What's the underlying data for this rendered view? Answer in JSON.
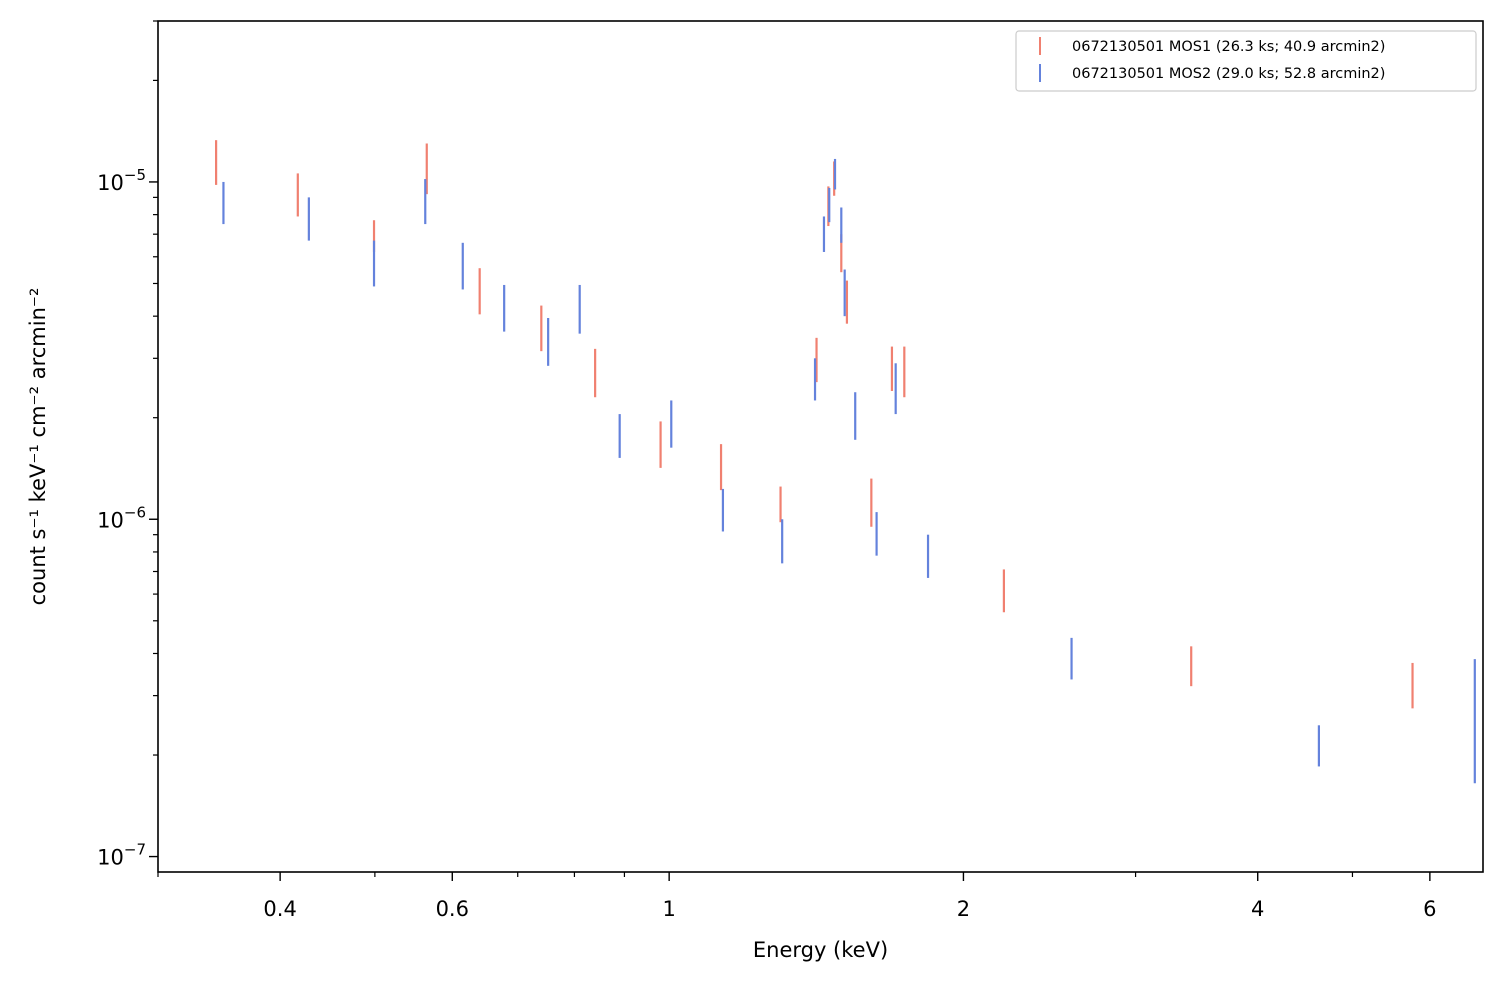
{
  "chart_data": {
    "type": "scatter",
    "xlabel": "Energy (keV)",
    "ylabel": "count s⁻¹ keV⁻¹ cm⁻² arcmin⁻²",
    "xscale": "log",
    "yscale": "log",
    "xlim": [
      0.3,
      6.8
    ],
    "ylim": [
      9e-08,
      3e-05
    ],
    "x_ticks": [
      {
        "value": 0.4,
        "label": "0.4"
      },
      {
        "value": 0.6,
        "label": "0.6"
      },
      {
        "value": 1,
        "label": "1"
      },
      {
        "value": 2,
        "label": "2"
      },
      {
        "value": 4,
        "label": "4"
      },
      {
        "value": 6,
        "label": "6"
      }
    ],
    "x_minor_ticks": [
      0.3,
      0.5,
      0.7,
      0.8,
      0.9,
      3,
      5
    ],
    "y_ticks": [
      {
        "value": 1e-05,
        "base": "10",
        "exp": "−5"
      },
      {
        "value": 1e-06,
        "base": "10",
        "exp": "−6"
      },
      {
        "value": 1e-07,
        "base": "10",
        "exp": "−7"
      }
    ],
    "y_minor_ticks": [
      2e-07,
      3e-07,
      4e-07,
      5e-07,
      6e-07,
      7e-07,
      8e-07,
      9e-07,
      2e-06,
      3e-06,
      4e-06,
      5e-06,
      6e-06,
      7e-06,
      8e-06,
      9e-06,
      2e-05,
      3e-05
    ],
    "grid": false,
    "legend_position": "top-right",
    "series": [
      {
        "name": "0672130501 MOS1 (26.3 ks; 40.9 arcmin2)",
        "color": "#f08070",
        "points": [
          {
            "x": 0.344,
            "ylo": 9.8e-06,
            "yhi": 1.33e-05
          },
          {
            "x": 0.417,
            "ylo": 7.9e-06,
            "yhi": 1.06e-05
          },
          {
            "x": 0.499,
            "ylo": 6.2e-06,
            "yhi": 7.7e-06
          },
          {
            "x": 0.565,
            "ylo": 9.2e-06,
            "yhi": 1.3e-05
          },
          {
            "x": 0.64,
            "ylo": 4.05e-06,
            "yhi": 5.55e-06
          },
          {
            "x": 0.74,
            "ylo": 3.15e-06,
            "yhi": 4.3e-06
          },
          {
            "x": 0.84,
            "ylo": 2.3e-06,
            "yhi": 3.2e-06
          },
          {
            "x": 0.98,
            "ylo": 1.42e-06,
            "yhi": 1.95e-06
          },
          {
            "x": 1.13,
            "ylo": 1.22e-06,
            "yhi": 1.67e-06
          },
          {
            "x": 1.3,
            "ylo": 9.8e-07,
            "yhi": 1.25e-06
          },
          {
            "x": 1.415,
            "ylo": 2.55e-06,
            "yhi": 3.45e-06
          },
          {
            "x": 1.455,
            "ylo": 7.4e-06,
            "yhi": 9.7e-06
          },
          {
            "x": 1.475,
            "ylo": 9.1e-06,
            "yhi": 1.15e-05
          },
          {
            "x": 1.5,
            "ylo": 5.4e-06,
            "yhi": 7e-06
          },
          {
            "x": 1.52,
            "ylo": 3.8e-06,
            "yhi": 5.1e-06
          },
          {
            "x": 1.61,
            "ylo": 9.5e-07,
            "yhi": 1.32e-06
          },
          {
            "x": 1.69,
            "ylo": 2.4e-06,
            "yhi": 3.25e-06
          },
          {
            "x": 1.74,
            "ylo": 2.3e-06,
            "yhi": 3.25e-06
          },
          {
            "x": 2.2,
            "ylo": 5.3e-07,
            "yhi": 7.1e-07
          },
          {
            "x": 3.42,
            "ylo": 3.2e-07,
            "yhi": 4.2e-07
          },
          {
            "x": 5.76,
            "ylo": 2.75e-07,
            "yhi": 3.75e-07
          }
        ]
      },
      {
        "name": "0672130501 MOS2 (29.0 ks; 52.8 arcmin2)",
        "color": "#6482dc",
        "points": [
          {
            "x": 0.35,
            "ylo": 7.5e-06,
            "yhi": 1e-05
          },
          {
            "x": 0.428,
            "ylo": 6.7e-06,
            "yhi": 9e-06
          },
          {
            "x": 0.499,
            "ylo": 4.9e-06,
            "yhi": 6.7e-06
          },
          {
            "x": 0.563,
            "ylo": 7.5e-06,
            "yhi": 1.02e-05
          },
          {
            "x": 0.615,
            "ylo": 4.8e-06,
            "yhi": 6.6e-06
          },
          {
            "x": 0.678,
            "ylo": 3.6e-06,
            "yhi": 4.95e-06
          },
          {
            "x": 0.752,
            "ylo": 2.85e-06,
            "yhi": 3.95e-06
          },
          {
            "x": 0.81,
            "ylo": 3.55e-06,
            "yhi": 4.95e-06
          },
          {
            "x": 0.89,
            "ylo": 1.52e-06,
            "yhi": 2.05e-06
          },
          {
            "x": 1.005,
            "ylo": 1.63e-06,
            "yhi": 2.25e-06
          },
          {
            "x": 1.135,
            "ylo": 9.2e-07,
            "yhi": 1.23e-06
          },
          {
            "x": 1.305,
            "ylo": 7.4e-07,
            "yhi": 1e-06
          },
          {
            "x": 1.41,
            "ylo": 2.25e-06,
            "yhi": 3e-06
          },
          {
            "x": 1.44,
            "ylo": 6.2e-06,
            "yhi": 7.9e-06
          },
          {
            "x": 1.458,
            "ylo": 7.6e-06,
            "yhi": 9.6e-06
          },
          {
            "x": 1.478,
            "ylo": 9.5e-06,
            "yhi": 1.17e-05
          },
          {
            "x": 1.5,
            "ylo": 6.6e-06,
            "yhi": 8.4e-06
          },
          {
            "x": 1.512,
            "ylo": 4e-06,
            "yhi": 5.5e-06
          },
          {
            "x": 1.55,
            "ylo": 1.72e-06,
            "yhi": 2.38e-06
          },
          {
            "x": 1.63,
            "ylo": 7.8e-07,
            "yhi": 1.05e-06
          },
          {
            "x": 1.705,
            "ylo": 2.05e-06,
            "yhi": 2.9e-06
          },
          {
            "x": 1.84,
            "ylo": 6.7e-07,
            "yhi": 9e-07
          },
          {
            "x": 2.58,
            "ylo": 3.35e-07,
            "yhi": 4.45e-07
          },
          {
            "x": 4.62,
            "ylo": 1.85e-07,
            "yhi": 2.45e-07
          },
          {
            "x": 6.67,
            "ylo": 1.65e-07,
            "yhi": 3.85e-07
          }
        ]
      }
    ]
  }
}
